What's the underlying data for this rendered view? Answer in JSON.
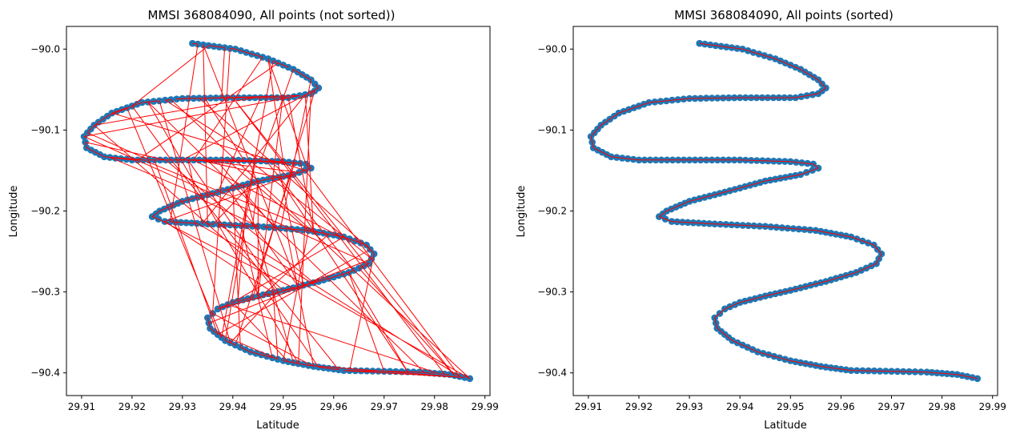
{
  "chart_data": [
    {
      "type": "scatter",
      "title": "MMSI 368084090, All points (not sorted))",
      "xlabel": "Latitude",
      "ylabel": "Longitude",
      "xlim": [
        29.907,
        29.991
      ],
      "ylim": [
        -90.428,
        -89.972
      ],
      "xticks": [
        "29.91",
        "29.92",
        "29.93",
        "29.94",
        "29.95",
        "29.96",
        "29.97",
        "29.98",
        "29.99"
      ],
      "yticks": [
        "−90.0",
        "−90.1",
        "−90.2",
        "−90.3",
        "−90.4"
      ],
      "marker_color": "#1f77b4",
      "line_color": "#ff0000",
      "connect_order": "unsorted",
      "grid": false
    },
    {
      "type": "scatter",
      "title": "MMSI 368084090, All points (sorted)",
      "xlabel": "Latitude",
      "ylabel": "Longitude",
      "xlim": [
        29.907,
        29.991
      ],
      "ylim": [
        -90.428,
        -89.972
      ],
      "xticks": [
        "29.91",
        "29.92",
        "29.93",
        "29.94",
        "29.95",
        "29.96",
        "29.97",
        "29.98",
        "29.99"
      ],
      "yticks": [
        "−90.0",
        "−90.1",
        "−90.2",
        "−90.3",
        "−90.4"
      ],
      "marker_color": "#1f77b4",
      "line_color": "#ff0000",
      "connect_order": "sorted",
      "grid": false
    }
  ],
  "track": [
    [
      29.932,
      -89.993
    ],
    [
      29.9405,
      -90.0
    ],
    [
      29.947,
      -90.012
    ],
    [
      29.952,
      -90.025
    ],
    [
      29.9555,
      -90.038
    ],
    [
      29.957,
      -90.048
    ],
    [
      29.9555,
      -90.055
    ],
    [
      29.951,
      -90.06
    ],
    [
      29.94,
      -90.06
    ],
    [
      29.93,
      -90.061
    ],
    [
      29.922,
      -90.066
    ],
    [
      29.916,
      -90.079
    ],
    [
      29.9125,
      -90.094
    ],
    [
      29.9105,
      -90.108
    ],
    [
      29.911,
      -90.122
    ],
    [
      29.9145,
      -90.133
    ],
    [
      29.92,
      -90.137
    ],
    [
      29.93,
      -90.137
    ],
    [
      29.94,
      -90.137
    ],
    [
      29.95,
      -90.139
    ],
    [
      29.9545,
      -90.142
    ],
    [
      29.9555,
      -90.147
    ],
    [
      29.952,
      -90.155
    ],
    [
      29.945,
      -90.163
    ],
    [
      29.938,
      -90.175
    ],
    [
      29.93,
      -90.188
    ],
    [
      29.9255,
      -90.2
    ],
    [
      29.924,
      -90.207
    ],
    [
      29.9265,
      -90.213
    ],
    [
      29.935,
      -90.216
    ],
    [
      29.945,
      -90.219
    ],
    [
      29.955,
      -90.224
    ],
    [
      29.962,
      -90.232
    ],
    [
      29.9665,
      -90.242
    ],
    [
      29.968,
      -90.253
    ],
    [
      29.967,
      -90.265
    ],
    [
      29.963,
      -90.276
    ],
    [
      29.957,
      -90.287
    ],
    [
      29.95,
      -90.298
    ],
    [
      29.945,
      -90.305
    ],
    [
      29.94,
      -90.313
    ],
    [
      29.937,
      -90.321
    ],
    [
      29.935,
      -90.332
    ],
    [
      29.9355,
      -90.345
    ],
    [
      29.9385,
      -90.36
    ],
    [
      29.9435,
      -90.374
    ],
    [
      29.95,
      -90.385
    ],
    [
      29.956,
      -90.392
    ],
    [
      29.962,
      -90.397
    ],
    [
      29.97,
      -90.398
    ],
    [
      29.977,
      -90.399
    ],
    [
      29.983,
      -90.402
    ],
    [
      29.987,
      -90.407
    ]
  ]
}
